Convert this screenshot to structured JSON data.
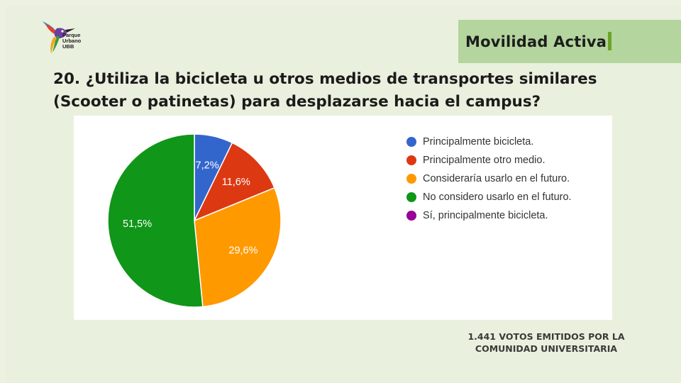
{
  "header": {
    "logo": {
      "icon": "hummingbird-logo",
      "lines": [
        "Parque",
        "Urbano",
        "UBB"
      ]
    },
    "section_title": "Movilidad Activa"
  },
  "question": "20. ¿Utiliza la bicicleta u otros medios de transportes similares (Scooter o patinetas) para desplazarse hacia el campus?",
  "chart_data": {
    "type": "pie",
    "start_angle_deg": 90,
    "direction": "clockwise",
    "legend_position": "right",
    "slices": [
      {
        "label": "Principalmente bicicleta.",
        "value": 7.2,
        "display": "7,2%",
        "color": "#3366cc"
      },
      {
        "label": "Principalmente otro medio.",
        "value": 11.6,
        "display": "11,6%",
        "color": "#dc3912"
      },
      {
        "label": "Consideraría usarlo en el futuro.",
        "value": 29.6,
        "display": "29,6%",
        "color": "#ff9900"
      },
      {
        "label": "No considero usarlo en el futuro.",
        "value": 51.5,
        "display": "51,5%",
        "color": "#109618"
      },
      {
        "label": "Sí, principalmente bicicleta.",
        "value": 0,
        "display": "",
        "color": "#990099"
      }
    ]
  },
  "footer": {
    "line1": "1.441  VOTOS EMITIDOS POR LA",
    "line2": "COMUNIDAD UNIVERSITARIA"
  }
}
